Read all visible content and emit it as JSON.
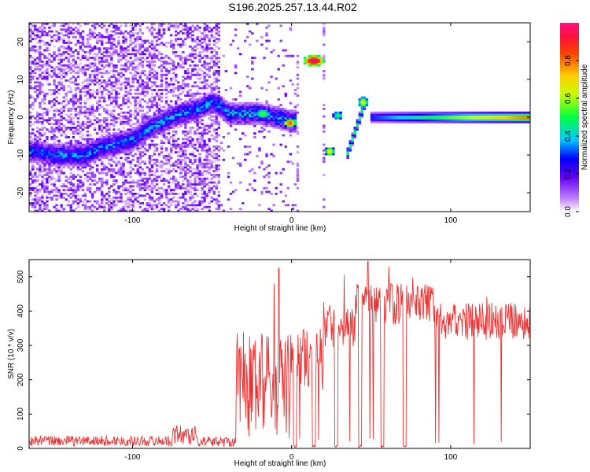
{
  "title": "S196.2025.257.13.44.R02",
  "chart_data": [
    {
      "type": "heatmap",
      "xlabel": "Height of straight line (km)",
      "ylabel": "Frequency (Hz)",
      "xlim": [
        -165,
        150
      ],
      "ylim": [
        -25,
        25
      ],
      "xticks": [
        -100,
        0,
        100
      ],
      "yticks": [
        -20,
        -10,
        0,
        10,
        20
      ],
      "colorbar": {
        "label": "Normalized spectral amplitude",
        "range": [
          0,
          1
        ],
        "ticks": [
          "0.0",
          "0.2",
          "0.4",
          "0.6",
          "0.8"
        ],
        "tick_values": [
          0,
          0.2,
          0.4,
          0.6,
          0.8
        ]
      },
      "ridge": [
        [
          -160,
          -9
        ],
        [
          -150,
          -10
        ],
        [
          -140,
          -10
        ],
        [
          -130,
          -10
        ],
        [
          -120,
          -8
        ],
        [
          -110,
          -7
        ],
        [
          -100,
          -6
        ],
        [
          -90,
          -3
        ],
        [
          -80,
          -1
        ],
        [
          -70,
          1
        ],
        [
          -60,
          2
        ],
        [
          -50,
          4
        ],
        [
          -45,
          3
        ],
        [
          -40,
          1
        ],
        [
          -30,
          1
        ],
        [
          -20,
          1
        ],
        [
          -10,
          0
        ],
        [
          0,
          -1
        ]
      ],
      "features": [
        {
          "x": 14,
          "y": 15,
          "w": 7,
          "h": 1.5,
          "amp": 1.0
        },
        {
          "x": 24,
          "y": -9,
          "w": 3,
          "h": 1.2,
          "amp": 0.7
        },
        {
          "x": 29,
          "y": 0.5,
          "w": 3,
          "h": 1.2,
          "amp": 0.5
        },
        {
          "x": -1,
          "y": -1.5,
          "w": 4,
          "h": 1.0,
          "amp": 0.85
        },
        {
          "x": -18,
          "y": 1,
          "w": 5,
          "h": 1.2,
          "amp": 0.55
        },
        {
          "x": 45,
          "y": 4,
          "w": 3,
          "h": 1.5,
          "amp": 0.65
        }
      ],
      "line": {
        "x_start": 50,
        "x_end": 150,
        "y": 0,
        "amp": 0.95
      },
      "slant": {
        "x_start": 34,
        "y_start": -11,
        "x_end": 47,
        "y_end": 5,
        "amp": 0.55
      }
    },
    {
      "type": "line",
      "xlabel": "Height of straight line (km)",
      "ylabel": "SNR (10 * v/v)",
      "xlim": [
        -165,
        150
      ],
      "ylim": [
        0,
        550
      ],
      "xticks": [
        -100,
        0,
        100
      ],
      "yticks": [
        0,
        100,
        200,
        300,
        400,
        500
      ],
      "series": [
        {
          "name": "SNR",
          "color": "#ee3333"
        }
      ],
      "segments": [
        {
          "x": [
            -165,
            -75
          ],
          "base": 22,
          "noise": 15
        },
        {
          "x": [
            -75,
            -60
          ],
          "base": 40,
          "noise": 30
        },
        {
          "x": [
            -60,
            -35
          ],
          "base": 20,
          "noise": 15
        },
        {
          "x": [
            -35,
            0
          ],
          "base": 180,
          "noise": 160
        },
        {
          "x": [
            0,
            20
          ],
          "base": 260,
          "noise": 90
        },
        {
          "x": [
            20,
            40
          ],
          "base": 360,
          "noise": 70
        },
        {
          "x": [
            40,
            90
          ],
          "base": 420,
          "noise": 60
        },
        {
          "x": [
            90,
            150
          ],
          "base": 370,
          "noise": 55
        }
      ],
      "dropouts": [
        2,
        14,
        28,
        43,
        57,
        71
      ],
      "spikes": [
        [
          -8,
          525
        ],
        [
          -11,
          480
        ],
        [
          33,
          505
        ],
        [
          48,
          545
        ],
        [
          61,
          530
        ]
      ]
    }
  ]
}
